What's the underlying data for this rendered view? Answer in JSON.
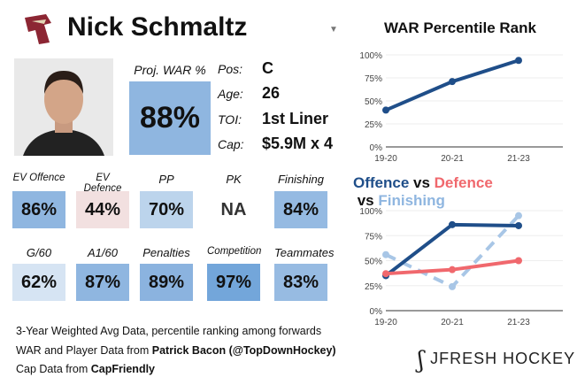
{
  "player": {
    "name": "Nick Schmaltz",
    "proj_war_label": "Proj. WAR %",
    "proj_war": "88%",
    "info": [
      {
        "label": "Pos:",
        "value": "C"
      },
      {
        "label": "Age:",
        "value": "26"
      },
      {
        "label": "TOI:",
        "value": "1st Liner"
      },
      {
        "label": "Cap:",
        "value": "$5.9M x 4"
      }
    ]
  },
  "tiles": [
    {
      "label": "EV Offence",
      "value": "86%",
      "color": "#8fb6e0"
    },
    {
      "label": "EV Defence",
      "value": "44%",
      "color": "#f2e0e0"
    },
    {
      "label": "PP",
      "value": "70%",
      "color": "#bcd4ec"
    },
    {
      "label": "PK",
      "value": "NA",
      "color": "#ffffff"
    },
    {
      "label": "Finishing",
      "value": "84%",
      "color": "#95bae2"
    },
    {
      "label": "G/60",
      "value": "62%",
      "color": "#d6e4f3"
    },
    {
      "label": "A1/60",
      "value": "87%",
      "color": "#8fb6e0"
    },
    {
      "label": "Penalties",
      "value": "89%",
      "color": "#8bb3df"
    },
    {
      "label": "Competition",
      "value": "97%",
      "color": "#73a6da"
    },
    {
      "label": "Teammates",
      "value": "83%",
      "color": "#97bbe2"
    }
  ],
  "footer": {
    "line1": "3-Year Weighted Avg Data, percentile ranking among forwards",
    "line2_pre": "WAR and Player Data from ",
    "line2_bold": "Patrick Bacon (@TopDownHockey)",
    "line3_pre": "Cap Data from ",
    "line3_bold": "CapFriendly",
    "brand": "JFRESH HOCKEY"
  },
  "chart_data": [
    {
      "type": "line",
      "title": "WAR Percentile Rank",
      "categories": [
        "19-20",
        "20-21",
        "21-23"
      ],
      "yticks": [
        "0%",
        "25%",
        "50%",
        "75%",
        "100%"
      ],
      "ylim": [
        0,
        100
      ],
      "series": [
        {
          "values": [
            40,
            71,
            94
          ],
          "color": "#1f4e89",
          "dash": false
        }
      ]
    },
    {
      "type": "line",
      "title_parts": [
        {
          "text": "Offence",
          "color": "#1f4e89"
        },
        {
          "text": " vs ",
          "color": "#111111"
        },
        {
          "text": "Defence",
          "color": "#f0686d"
        },
        {
          "text": " vs ",
          "color": "#111111"
        },
        {
          "text": "Finishing",
          "color": "#8fb6e0"
        }
      ],
      "categories": [
        "19-20",
        "20-21",
        "21-23"
      ],
      "yticks": [
        "0%",
        "25%",
        "50%",
        "75%",
        "100%"
      ],
      "ylim": [
        0,
        100
      ],
      "series": [
        {
          "name": "Finishing",
          "values": [
            56,
            24,
            95
          ],
          "color": "#a8c6e6",
          "dash": true
        },
        {
          "name": "Offence",
          "values": [
            35,
            86,
            85
          ],
          "color": "#1f4e89",
          "dash": false
        },
        {
          "name": "Defence",
          "values": [
            37,
            41,
            50
          ],
          "color": "#f0686d",
          "dash": false
        }
      ]
    }
  ]
}
